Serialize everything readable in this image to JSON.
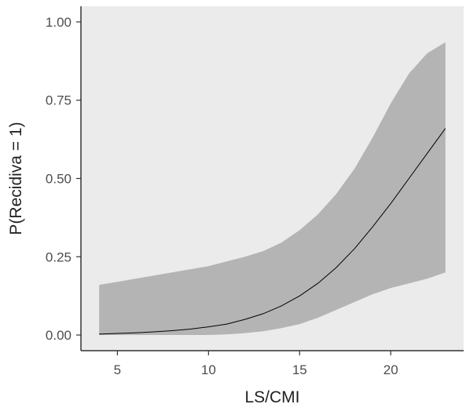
{
  "chart_data": {
    "type": "line",
    "title": "",
    "xlabel": "LS/CMI",
    "ylabel": "P(Recidiva = 1)",
    "xlim": [
      3,
      24
    ],
    "ylim": [
      -0.05,
      1.05
    ],
    "x_ticks": [
      5,
      10,
      15,
      20
    ],
    "x_tick_labels": [
      "5",
      "10",
      "15",
      "20"
    ],
    "y_ticks": [
      0,
      0.25,
      0.5,
      0.75,
      1
    ],
    "y_tick_labels": [
      "0.00",
      "0.25",
      "0.50",
      "0.75",
      "1.00"
    ],
    "grid": false,
    "legend": "none",
    "series": [
      {
        "x": [
          4,
          5,
          6,
          7,
          8,
          9,
          10,
          11,
          12,
          13,
          14,
          15,
          16,
          17,
          18,
          19,
          20,
          21,
          22,
          23
        ],
        "y": [
          0.003,
          0.005,
          0.007,
          0.01,
          0.014,
          0.019,
          0.026,
          0.035,
          0.05,
          0.068,
          0.093,
          0.125,
          0.165,
          0.215,
          0.275,
          0.345,
          0.42,
          0.5,
          0.58,
          0.66
        ],
        "lower": [
          0.0,
          0.0,
          0.0,
          0.0,
          0.0,
          0.0,
          0.0,
          0.002,
          0.006,
          0.012,
          0.022,
          0.035,
          0.055,
          0.08,
          0.105,
          0.13,
          0.15,
          0.165,
          0.18,
          0.2
        ],
        "upper": [
          0.16,
          0.17,
          0.18,
          0.19,
          0.2,
          0.21,
          0.22,
          0.235,
          0.25,
          0.268,
          0.295,
          0.335,
          0.385,
          0.45,
          0.53,
          0.63,
          0.74,
          0.835,
          0.9,
          0.935
        ]
      }
    ]
  },
  "colors": {
    "panel_background": "#ebebeb",
    "ribbon": "#b4b4b4",
    "line": "#000000",
    "axis": "#333333",
    "tick_text": "#4d4d4d",
    "label_text": "#222222"
  }
}
